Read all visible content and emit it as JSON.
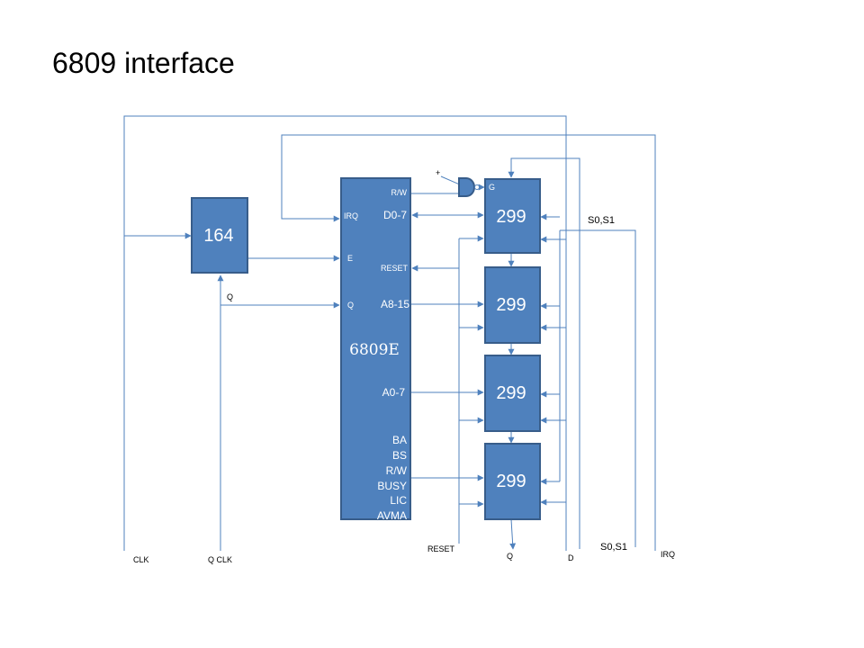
{
  "slide": {
    "title": "6809 interface"
  },
  "blocks": {
    "shift_register": "164",
    "cpu": "6809E",
    "io_chips": [
      "299",
      "299",
      "299",
      "299"
    ]
  },
  "cpu_pins": {
    "left": {
      "irq": "IRQ",
      "e": "E",
      "q": "Q"
    },
    "right": {
      "rw_top": "R/W",
      "d07": "D0-7",
      "reset": "RESET",
      "a815": "A8-15",
      "a07": "A0-7",
      "ba": "BA",
      "bs": "BS",
      "rw": "R/W",
      "busy": "BUSY",
      "lic": "LIC",
      "avma": "AVMA"
    }
  },
  "labels": {
    "plus": "+",
    "gate": "G",
    "q_wire": "Q",
    "s0s1_top": "S0,S1",
    "reset_bottom": "RESET",
    "q_out": "Q",
    "d_in": "D",
    "s0s1_bottom": "S0,S1",
    "irq_bottom": "IRQ",
    "clk": "CLK",
    "q_clk": "Q CLK"
  },
  "colors": {
    "block": "#4f81bd",
    "block_border": "#385d8a",
    "wire": "#4f81bd"
  }
}
